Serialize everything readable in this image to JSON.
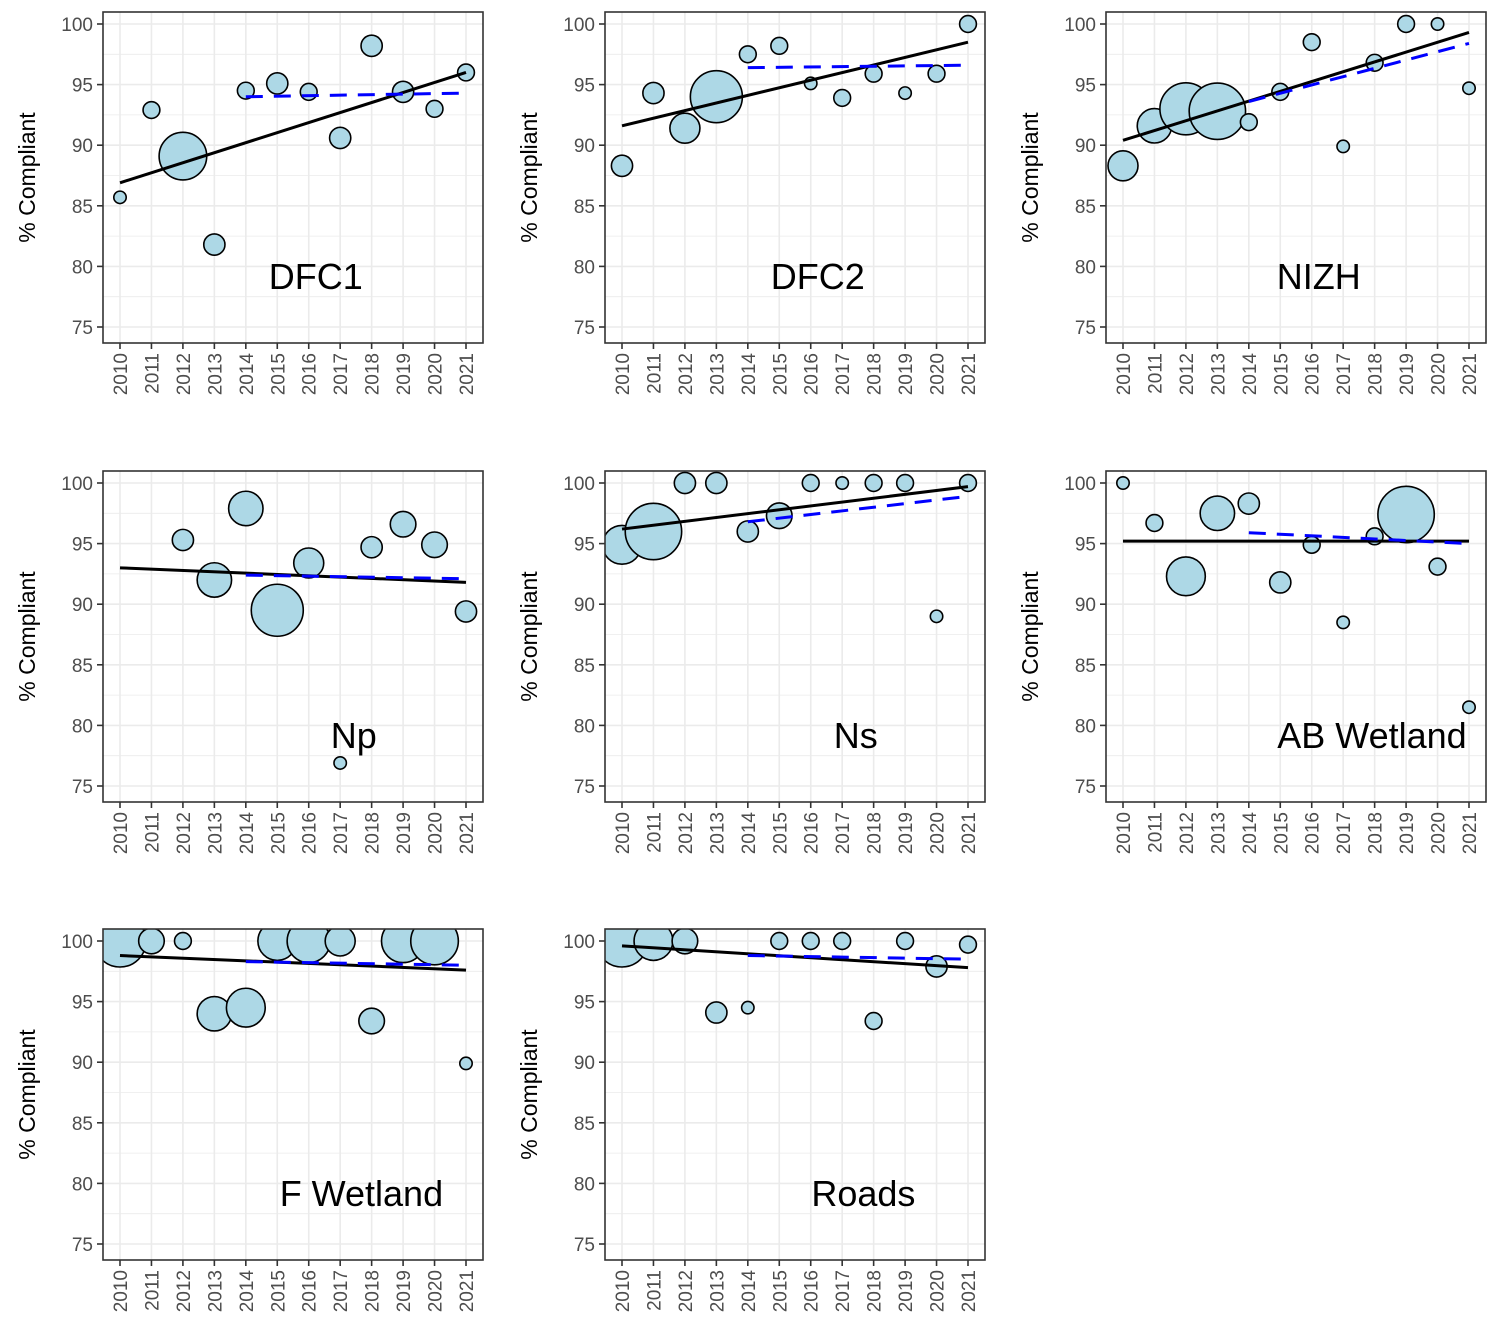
{
  "figure": {
    "point_fill": "#add8e6",
    "point_stroke": "#000000",
    "trend_color": "#000000",
    "recent_trend_color": "#0000ff",
    "grid_color": "#ebebeb"
  },
  "chart_data": [
    {
      "type": "scatter",
      "label": "DFC1",
      "ylabel": "% Compliant",
      "xlabel": "",
      "x": [
        "2010",
        "2011",
        "2012",
        "2013",
        "2014",
        "2015",
        "2016",
        "2017",
        "2018",
        "2019",
        "2020",
        "2021"
      ],
      "y": [
        85.7,
        92.9,
        89.1,
        81.8,
        94.5,
        95.1,
        94.4,
        90.6,
        98.2,
        94.4,
        93.0,
        96.0
      ],
      "size": [
        1,
        2,
        9,
        3,
        2,
        3,
        2,
        3,
        3,
        3,
        2,
        2
      ],
      "ylim": [
        75,
        100
      ],
      "yticks": [
        75,
        80,
        85,
        90,
        95,
        100
      ],
      "trend": [
        [
          2010,
          86.9
        ],
        [
          2021,
          96.0
        ]
      ],
      "recent_trend": [
        [
          2014,
          94.0
        ],
        [
          2021,
          94.3
        ]
      ]
    },
    {
      "type": "scatter",
      "label": "DFC2",
      "ylabel": "% Compliant",
      "xlabel": "",
      "x": [
        "2010",
        "2011",
        "2012",
        "2013",
        "2014",
        "2015",
        "2016",
        "2017",
        "2018",
        "2019",
        "2020",
        "2021"
      ],
      "y": [
        88.3,
        94.3,
        91.4,
        94.0,
        97.5,
        98.2,
        95.1,
        93.9,
        95.9,
        94.3,
        95.9,
        100.0
      ],
      "size": [
        3,
        3,
        5,
        10,
        2,
        2,
        1,
        2,
        2,
        1,
        2,
        2
      ],
      "ylim": [
        75,
        100
      ],
      "yticks": [
        75,
        80,
        85,
        90,
        95,
        100
      ],
      "trend": [
        [
          2010,
          91.6
        ],
        [
          2021,
          98.5
        ]
      ],
      "recent_trend": [
        [
          2014,
          96.4
        ],
        [
          2021,
          96.6
        ]
      ]
    },
    {
      "type": "scatter",
      "label": "NIZH",
      "ylabel": "% Compliant",
      "xlabel": "",
      "x": [
        "2010",
        "2011",
        "2012",
        "2013",
        "2014",
        "2015",
        "2016",
        "2017",
        "2018",
        "2019",
        "2020",
        "2021"
      ],
      "y": [
        88.3,
        91.6,
        93.0,
        92.8,
        91.9,
        94.4,
        98.5,
        89.9,
        96.8,
        100.0,
        100.0,
        94.7
      ],
      "size": [
        5,
        6,
        10,
        11,
        2,
        2,
        2,
        1,
        2,
        2,
        1,
        1
      ],
      "ylim": [
        75,
        100
      ],
      "yticks": [
        75,
        80,
        85,
        90,
        95,
        100
      ],
      "trend": [
        [
          2010,
          90.4
        ],
        [
          2021,
          99.3
        ]
      ],
      "recent_trend": [
        [
          2014,
          93.6
        ],
        [
          2021,
          98.4
        ]
      ]
    },
    {
      "type": "scatter",
      "label": "Np",
      "ylabel": "% Compliant",
      "xlabel": "",
      "x": [
        "2010",
        "2011",
        "2012",
        "2013",
        "2014",
        "2015",
        "2016",
        "2017",
        "2018",
        "2019",
        "2020",
        "2021"
      ],
      "y": [
        null,
        null,
        95.3,
        92.0,
        97.9,
        89.5,
        93.4,
        76.9,
        94.7,
        96.6,
        94.9,
        89.4
      ],
      "size": [
        0,
        0,
        3,
        6,
        6,
        10,
        5,
        1,
        3,
        4,
        4,
        3
      ],
      "ylim": [
        75,
        100
      ],
      "yticks": [
        75,
        80,
        85,
        90,
        95,
        100
      ],
      "trend": [
        [
          2010,
          93.0
        ],
        [
          2021,
          91.8
        ]
      ],
      "recent_trend": [
        [
          2014,
          92.4
        ],
        [
          2021,
          92.1
        ]
      ]
    },
    {
      "type": "scatter",
      "label": "Ns",
      "ylabel": "% Compliant",
      "xlabel": "",
      "x": [
        "2010",
        "2011",
        "2012",
        "2013",
        "2014",
        "2015",
        "2016",
        "2017",
        "2018",
        "2019",
        "2020",
        "2021"
      ],
      "y": [
        94.9,
        96.0,
        100.0,
        100.0,
        96.0,
        97.3,
        100.0,
        100.0,
        100.0,
        100.0,
        89.0,
        100.0
      ],
      "size": [
        7,
        11,
        3,
        3,
        3,
        4,
        2,
        1,
        2,
        2,
        1,
        2
      ],
      "ylim": [
        75,
        100
      ],
      "yticks": [
        75,
        80,
        85,
        90,
        95,
        100
      ],
      "trend": [
        [
          2010,
          96.2
        ],
        [
          2021,
          99.7
        ]
      ],
      "recent_trend": [
        [
          2014,
          96.8
        ],
        [
          2021,
          98.9
        ]
      ]
    },
    {
      "type": "scatter",
      "label": "AB Wetland",
      "ylabel": "% Compliant",
      "xlabel": "",
      "x": [
        "2010",
        "2011",
        "2012",
        "2013",
        "2014",
        "2015",
        "2016",
        "2017",
        "2018",
        "2019",
        "2020",
        "2021"
      ],
      "y": [
        100.0,
        96.7,
        92.3,
        97.5,
        98.3,
        91.8,
        94.9,
        88.5,
        95.6,
        97.4,
        93.1,
        81.5
      ],
      "size": [
        1,
        2,
        7,
        6,
        3,
        3,
        2,
        1,
        2,
        11,
        2,
        1
      ],
      "ylim": [
        75,
        100
      ],
      "yticks": [
        75,
        80,
        85,
        90,
        95,
        100
      ],
      "trend": [
        [
          2010,
          95.2
        ],
        [
          2021,
          95.2
        ]
      ],
      "recent_trend": [
        [
          2014,
          95.9
        ],
        [
          2021,
          95.0
        ]
      ]
    },
    {
      "type": "scatter",
      "label": "F Wetland",
      "ylabel": "% Compliant",
      "xlabel": "",
      "x": [
        "2010",
        "2011",
        "2012",
        "2013",
        "2014",
        "2015",
        "2016",
        "2017",
        "2018",
        "2019",
        "2020",
        "2021"
      ],
      "y": [
        100.0,
        100.0,
        100.0,
        94.0,
        94.5,
        100.0,
        100.0,
        100.0,
        93.4,
        100.0,
        100.0,
        89.9
      ],
      "size": [
        10,
        4,
        2,
        6,
        7,
        7,
        8,
        5,
        4,
        8,
        9,
        1
      ],
      "ylim": [
        75,
        100
      ],
      "yticks": [
        75,
        80,
        85,
        90,
        95,
        100
      ],
      "trend": [
        [
          2010,
          98.8
        ],
        [
          2021,
          97.6
        ]
      ],
      "recent_trend": [
        [
          2014,
          98.3
        ],
        [
          2021,
          98.0
        ]
      ]
    },
    {
      "type": "scatter",
      "label": "Roads",
      "ylabel": "% Compliant",
      "xlabel": "",
      "x": [
        "2010",
        "2011",
        "2012",
        "2013",
        "2014",
        "2015",
        "2016",
        "2017",
        "2018",
        "2019",
        "2020",
        "2021"
      ],
      "y": [
        100.0,
        100.0,
        100.0,
        94.1,
        94.5,
        100.0,
        100.0,
        100.0,
        93.4,
        100.0,
        97.9,
        99.7
      ],
      "size": [
        10,
        7,
        4,
        3,
        1,
        2,
        2,
        2,
        2,
        2,
        3,
        2
      ],
      "ylim": [
        75,
        100
      ],
      "yticks": [
        75,
        80,
        85,
        90,
        95,
        100
      ],
      "trend": [
        [
          2010,
          99.6
        ],
        [
          2021,
          97.8
        ]
      ],
      "recent_trend": [
        [
          2014,
          98.8
        ],
        [
          2021,
          98.5
        ]
      ]
    }
  ]
}
